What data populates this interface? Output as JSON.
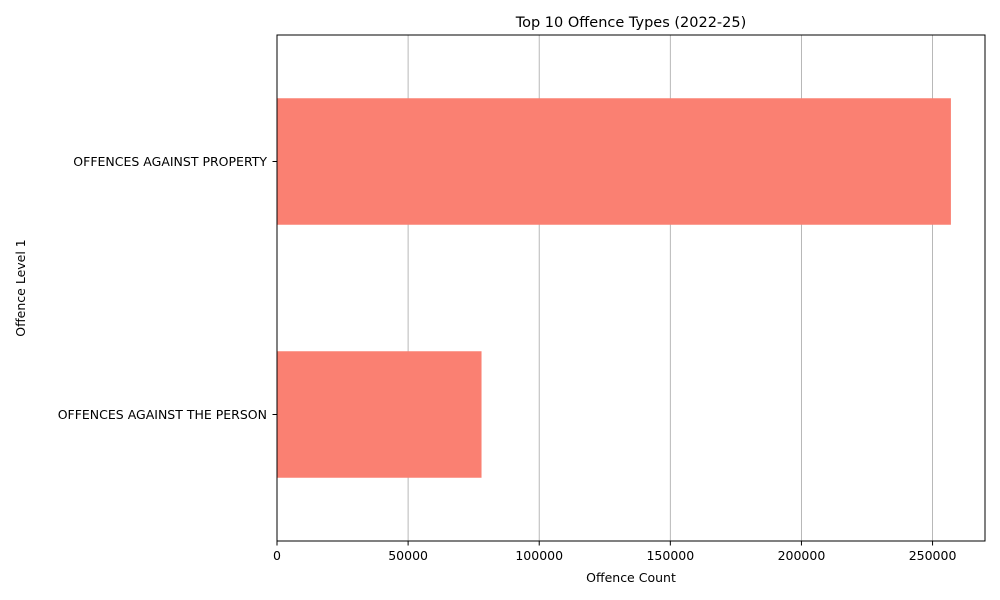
{
  "chart_data": {
    "type": "bar",
    "orientation": "horizontal",
    "title": "Top 10 Offence Types (2022-25)",
    "xlabel": "Offence Count",
    "ylabel": "Offence Level 1",
    "categories": [
      "OFFENCES AGAINST PROPERTY",
      "OFFENCES AGAINST THE PERSON"
    ],
    "values": [
      257000,
      78000
    ],
    "xlim": [
      0,
      270000
    ],
    "xticks": [
      0,
      50000,
      100000,
      150000,
      200000,
      250000
    ],
    "xtick_labels": [
      "0",
      "50000",
      "100000",
      "150000",
      "200000",
      "250000"
    ],
    "grid": "x-axis vertical lines",
    "legend": "none",
    "colors": {
      "bar": "#fa8072",
      "grid": "#b0b0b0",
      "axis": "#000000"
    }
  }
}
